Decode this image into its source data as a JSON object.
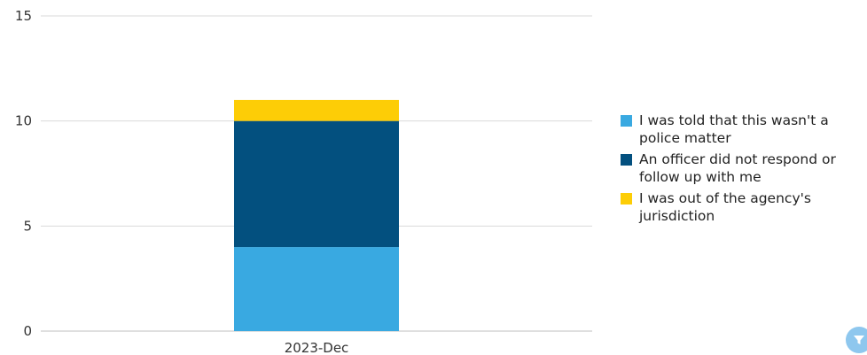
{
  "chart_data": {
    "type": "bar",
    "stacked": true,
    "categories": [
      "2023-Dec"
    ],
    "series": [
      {
        "name": "I was told that this wasn't a police matter",
        "values": [
          4
        ],
        "color": "#39a9e1"
      },
      {
        "name": "An officer did not respond or follow up with me",
        "values": [
          6
        ],
        "color": "#03507f"
      },
      {
        "name": "I was out of the agency's jurisdiction",
        "values": [
          1
        ],
        "color": "#fdcd06"
      }
    ],
    "yticks": [
      "0",
      "5",
      "10",
      "15"
    ],
    "ylim": [
      0,
      15
    ],
    "grid": true,
    "legend_position": "right"
  },
  "legend": {
    "items": [
      {
        "label": "I was told that this wasn't a police matter",
        "color": "#39a9e1"
      },
      {
        "label": "An officer did not respond or follow up with me",
        "color": "#03507f"
      },
      {
        "label": "I was out of the agency's jurisdiction",
        "color": "#fdcd06"
      }
    ]
  },
  "filter_button": {
    "icon": "filter-icon",
    "color": "#8ec7ee"
  }
}
